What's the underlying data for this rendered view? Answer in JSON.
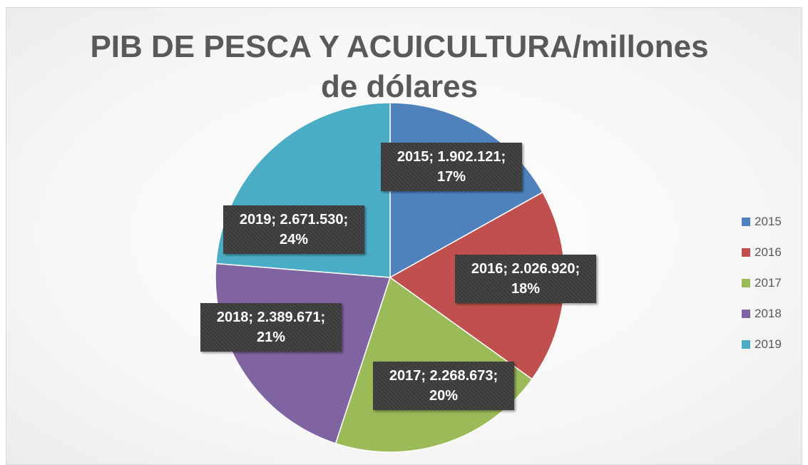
{
  "chart_data": {
    "type": "pie",
    "title": "PIB DE PESCA Y ACUICULTURA/millones de dólares",
    "categories": [
      "2015",
      "2016",
      "2017",
      "2018",
      "2019"
    ],
    "values": [
      1902121,
      2026920,
      2268673,
      2389671,
      2671530
    ],
    "value_labels": [
      "2015; 1.902.121; 17%",
      "2016; 2.026.920; 18%",
      "2017; 2.268.673; 20%",
      "2018; 2.389.671; 21%",
      "2019; 2.671.530; 24%"
    ],
    "colors": [
      "#4f81bd",
      "#c0504d",
      "#9bbb59",
      "#8064a2",
      "#4bacc6"
    ],
    "legend": "right"
  }
}
